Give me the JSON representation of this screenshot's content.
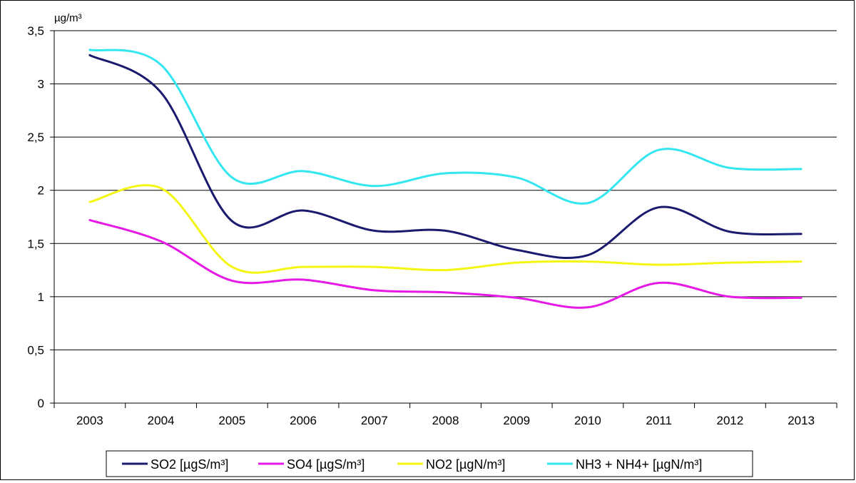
{
  "chart_data": {
    "type": "line",
    "title": "",
    "unit_label": "µg/m³",
    "xlabel": "",
    "ylabel": "",
    "categories": [
      "2003",
      "2004",
      "2005",
      "2006",
      "2007",
      "2008",
      "2009",
      "2010",
      "2011",
      "2012",
      "2013"
    ],
    "ylim": [
      0,
      3.5
    ],
    "yticks": [
      "0",
      "0,5",
      "1",
      "1,5",
      "2",
      "2,5",
      "3",
      "3,5"
    ],
    "ytick_values": [
      0,
      0.5,
      1,
      1.5,
      2,
      2.5,
      3,
      3.5
    ],
    "grid": true,
    "smooth": true,
    "legend_position": "bottom",
    "series": [
      {
        "name": "SO2 [µgS/m³]",
        "color": "#1a1a6e",
        "values": [
          3.27,
          2.92,
          1.71,
          1.81,
          1.62,
          1.62,
          1.44,
          1.39,
          1.84,
          1.61,
          1.59
        ]
      },
      {
        "name": "SO4 [µgS/m³]",
        "color": "#e619e6",
        "values": [
          1.72,
          1.52,
          1.15,
          1.16,
          1.06,
          1.04,
          0.99,
          0.9,
          1.13,
          1.0,
          0.99
        ]
      },
      {
        "name": "NO2 [µgN/m³]",
        "color": "#f5f514",
        "values": [
          1.89,
          2.02,
          1.28,
          1.28,
          1.28,
          1.25,
          1.32,
          1.33,
          1.3,
          1.32,
          1.33
        ]
      },
      {
        "name": "NH3 + NH4+ [µgN/m³]",
        "color": "#33e6f0",
        "values": [
          3.32,
          3.18,
          2.12,
          2.18,
          2.04,
          2.16,
          2.12,
          1.88,
          2.38,
          2.21,
          2.2
        ]
      }
    ]
  }
}
